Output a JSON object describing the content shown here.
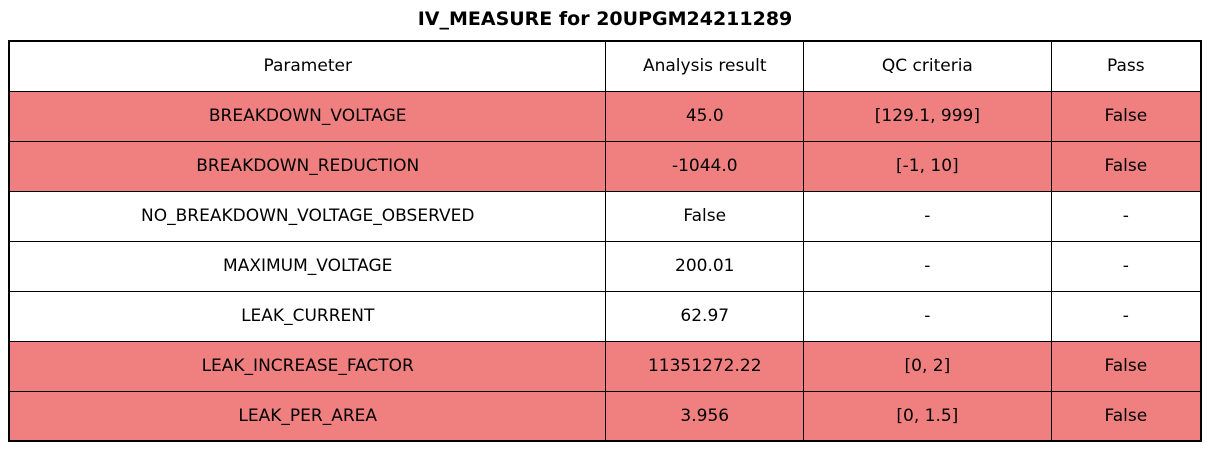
{
  "title": "IV_MEASURE for 20UPGM24211289",
  "chart_data": {
    "type": "table",
    "title": "IV_MEASURE for 20UPGM24211289",
    "columns": [
      "Parameter",
      "Analysis result",
      "QC criteria",
      "Pass"
    ],
    "column_widths_pct": [
      50.08,
      16.58,
      20.77,
      12.57
    ],
    "rows": [
      {
        "parameter": "BREAKDOWN_VOLTAGE",
        "analysis_result": "45.0",
        "qc_criteria": "[129.1, 999]",
        "pass": "False",
        "failed": true
      },
      {
        "parameter": "BREAKDOWN_REDUCTION",
        "analysis_result": "-1044.0",
        "qc_criteria": "[-1, 10]",
        "pass": "False",
        "failed": true
      },
      {
        "parameter": "NO_BREAKDOWN_VOLTAGE_OBSERVED",
        "analysis_result": "False",
        "qc_criteria": "-",
        "pass": "-",
        "failed": false
      },
      {
        "parameter": "MAXIMUM_VOLTAGE",
        "analysis_result": "200.01",
        "qc_criteria": "-",
        "pass": "-",
        "failed": false
      },
      {
        "parameter": "LEAK_CURRENT",
        "analysis_result": "62.97",
        "qc_criteria": "-",
        "pass": "-",
        "failed": false
      },
      {
        "parameter": "LEAK_INCREASE_FACTOR",
        "analysis_result": "11351272.22",
        "qc_criteria": "[0, 2]",
        "pass": "False",
        "failed": true
      },
      {
        "parameter": "LEAK_PER_AREA",
        "analysis_result": "3.956",
        "qc_criteria": "[0, 1.5]",
        "pass": "False",
        "failed": true
      }
    ],
    "colors": {
      "fail_row_bg": "#f08080",
      "pass_row_bg": "#ffffff",
      "border": "#000000",
      "text": "#000000"
    },
    "legend_position": "none",
    "grid": "full-cell-borders"
  }
}
